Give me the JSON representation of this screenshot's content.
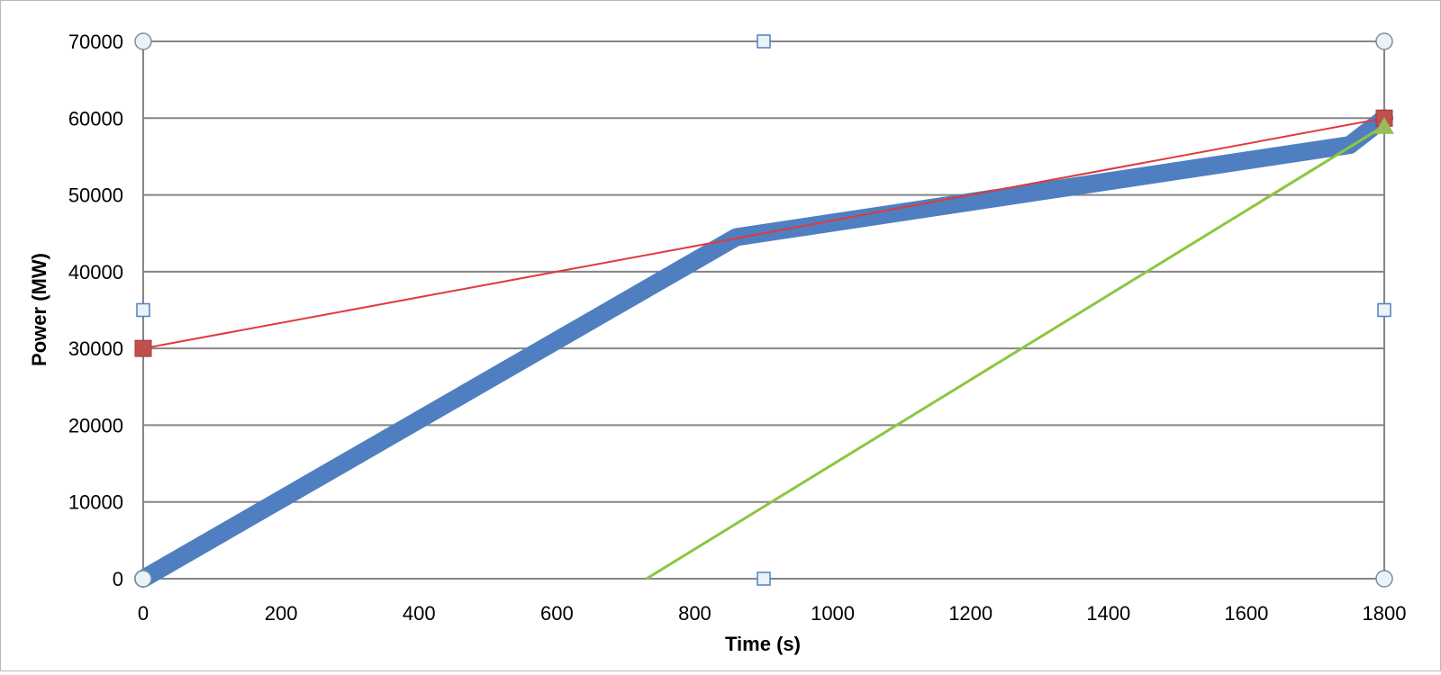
{
  "chart_data": {
    "type": "line",
    "xlabel": "Time (s)",
    "ylabel": "Power (MW)",
    "xlim": [
      0,
      1800
    ],
    "ylim": [
      0,
      70000
    ],
    "x_ticks": [
      0,
      200,
      400,
      600,
      800,
      1000,
      1200,
      1400,
      1600,
      1800
    ],
    "y_ticks": [
      0,
      10000,
      20000,
      30000,
      40000,
      50000,
      60000,
      70000
    ],
    "x_tick_labels": [
      "0",
      "200",
      "400",
      "600",
      "800",
      "1000",
      "1200",
      "1400",
      "1600",
      "1800"
    ],
    "y_tick_labels": [
      "0",
      "10000",
      "20000",
      "30000",
      "40000",
      "50000",
      "60000",
      "70000"
    ],
    "grid": true,
    "legend": "none",
    "series": [
      {
        "color": "#4f7fc0",
        "style": "thick-band",
        "x": [
          0,
          860,
          1750,
          1800
        ],
        "y": [
          0,
          44500,
          56500,
          60000
        ]
      },
      {
        "color": "#e0393b",
        "marker": "square",
        "marker_color": "#c0504d",
        "x": [
          0,
          1800
        ],
        "y": [
          30000,
          60000
        ]
      },
      {
        "color": "#8cc63f",
        "marker": "triangle",
        "marker_color": "#9bbb59",
        "x": [
          730,
          1800
        ],
        "y": [
          0,
          59000
        ]
      }
    ]
  }
}
